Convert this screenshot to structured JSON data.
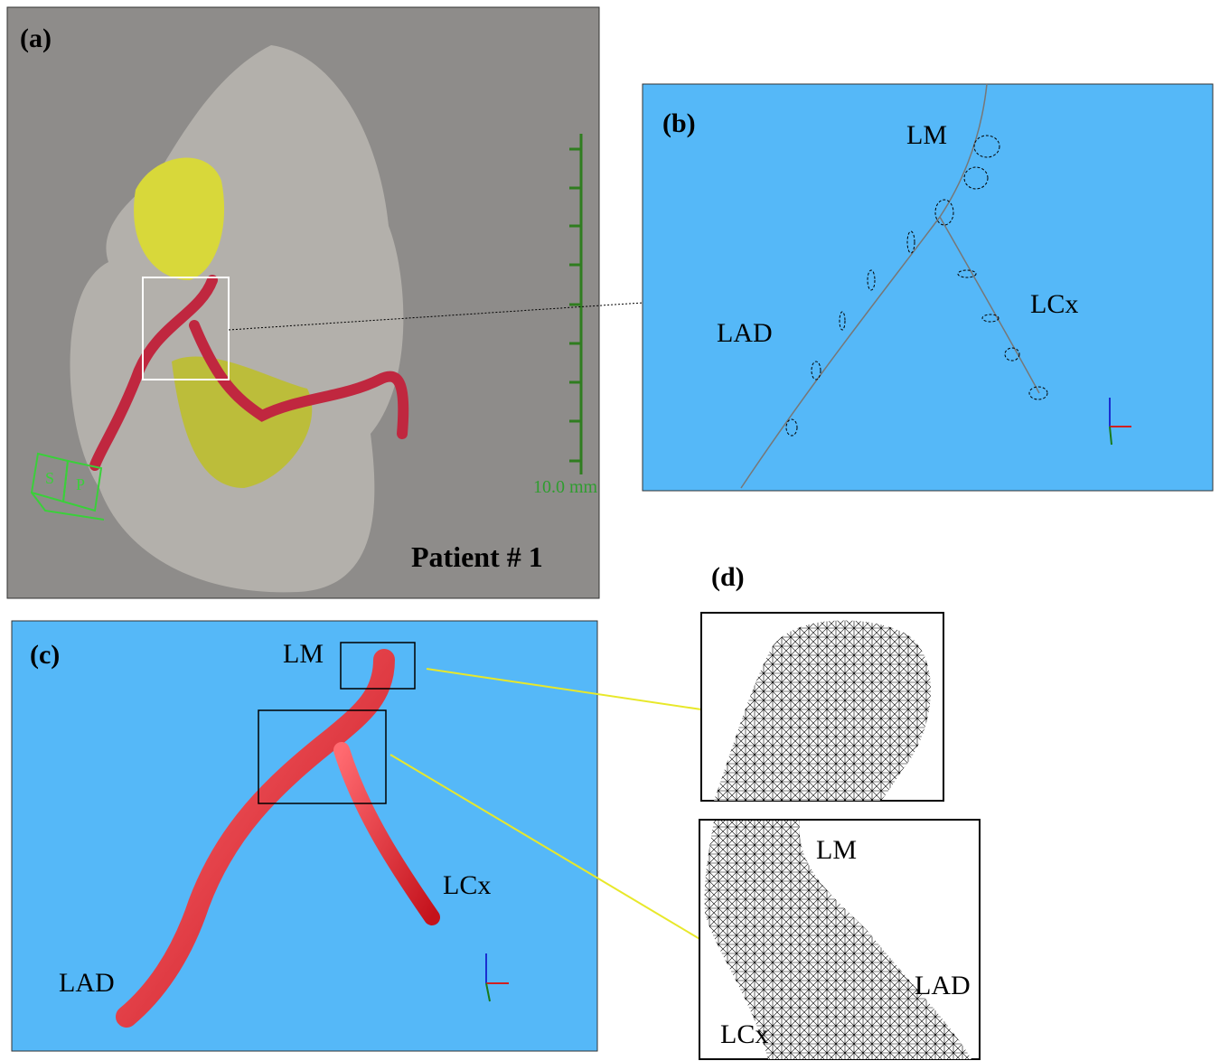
{
  "panels": {
    "a": {
      "label": "(a)",
      "caption": "Patient # 1",
      "scale": "10.0 mm",
      "orientation": [
        "S",
        "P"
      ]
    },
    "b": {
      "label": "(b)",
      "vessels": {
        "lm": "LM",
        "lad": "LAD",
        "lcx": "LCx"
      }
    },
    "c": {
      "label": "(c)",
      "vessels": {
        "lm": "LM",
        "lad": "LAD",
        "lcx": "LCx"
      }
    },
    "d": {
      "label": "(d)",
      "vessels": {
        "lm": "LM",
        "lad": "LAD",
        "lcx": "LCx"
      }
    }
  }
}
